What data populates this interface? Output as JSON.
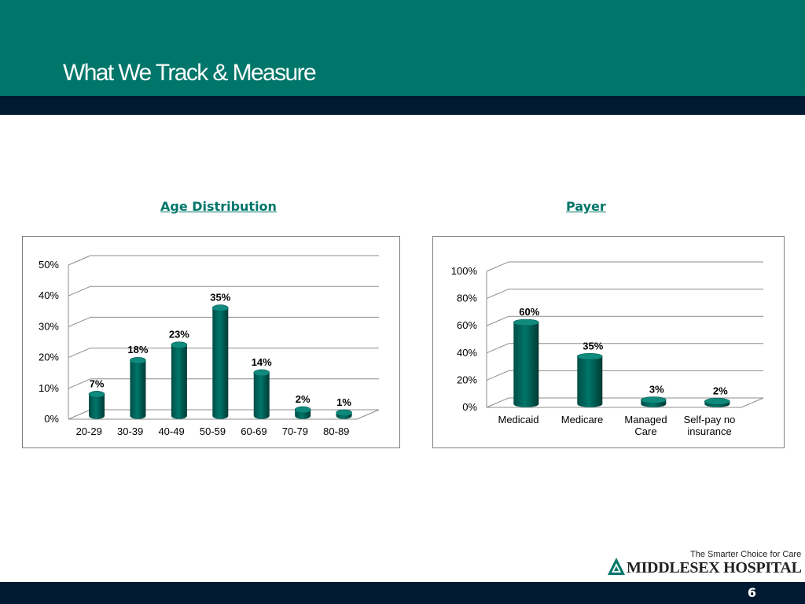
{
  "slide": {
    "title": "What We Track & Measure",
    "page_number": "6"
  },
  "colors": {
    "header": "#00766a",
    "dark_band": "#001a33",
    "bar": "#00766a",
    "heading": "#00766a"
  },
  "logo": {
    "tagline": "The Smarter Choice for Care",
    "name": "MIDDLESEX HOSPITAL"
  },
  "chart_data": [
    {
      "type": "bar",
      "title": "Age Distribution",
      "categories": [
        "20-29",
        "30-39",
        "40-49",
        "50-59",
        "60-69",
        "70-79",
        "80-89"
      ],
      "values": [
        7,
        18,
        23,
        35,
        14,
        2,
        1
      ],
      "value_labels": [
        "7%",
        "18%",
        "23%",
        "35%",
        "14%",
        "2%",
        "1%"
      ],
      "y_ticks": [
        "0%",
        "10%",
        "20%",
        "30%",
        "40%",
        "50%"
      ],
      "ylim": [
        0,
        50
      ],
      "xlabel": "",
      "ylabel": "",
      "grid": true,
      "legend": "none",
      "style": "3d-cylinder"
    },
    {
      "type": "bar",
      "title": "Payer",
      "categories": [
        "Medicaid",
        "Medicare",
        "Managed Care",
        "Self-pay no insurance"
      ],
      "values": [
        60,
        35,
        3,
        2
      ],
      "value_labels": [
        "60%",
        "35%",
        "3%",
        "2%"
      ],
      "y_ticks": [
        "0%",
        "20%",
        "40%",
        "60%",
        "80%",
        "100%"
      ],
      "ylim": [
        0,
        100
      ],
      "xlabel": "",
      "ylabel": "",
      "grid": true,
      "legend": "none",
      "style": "3d-cylinder"
    }
  ]
}
